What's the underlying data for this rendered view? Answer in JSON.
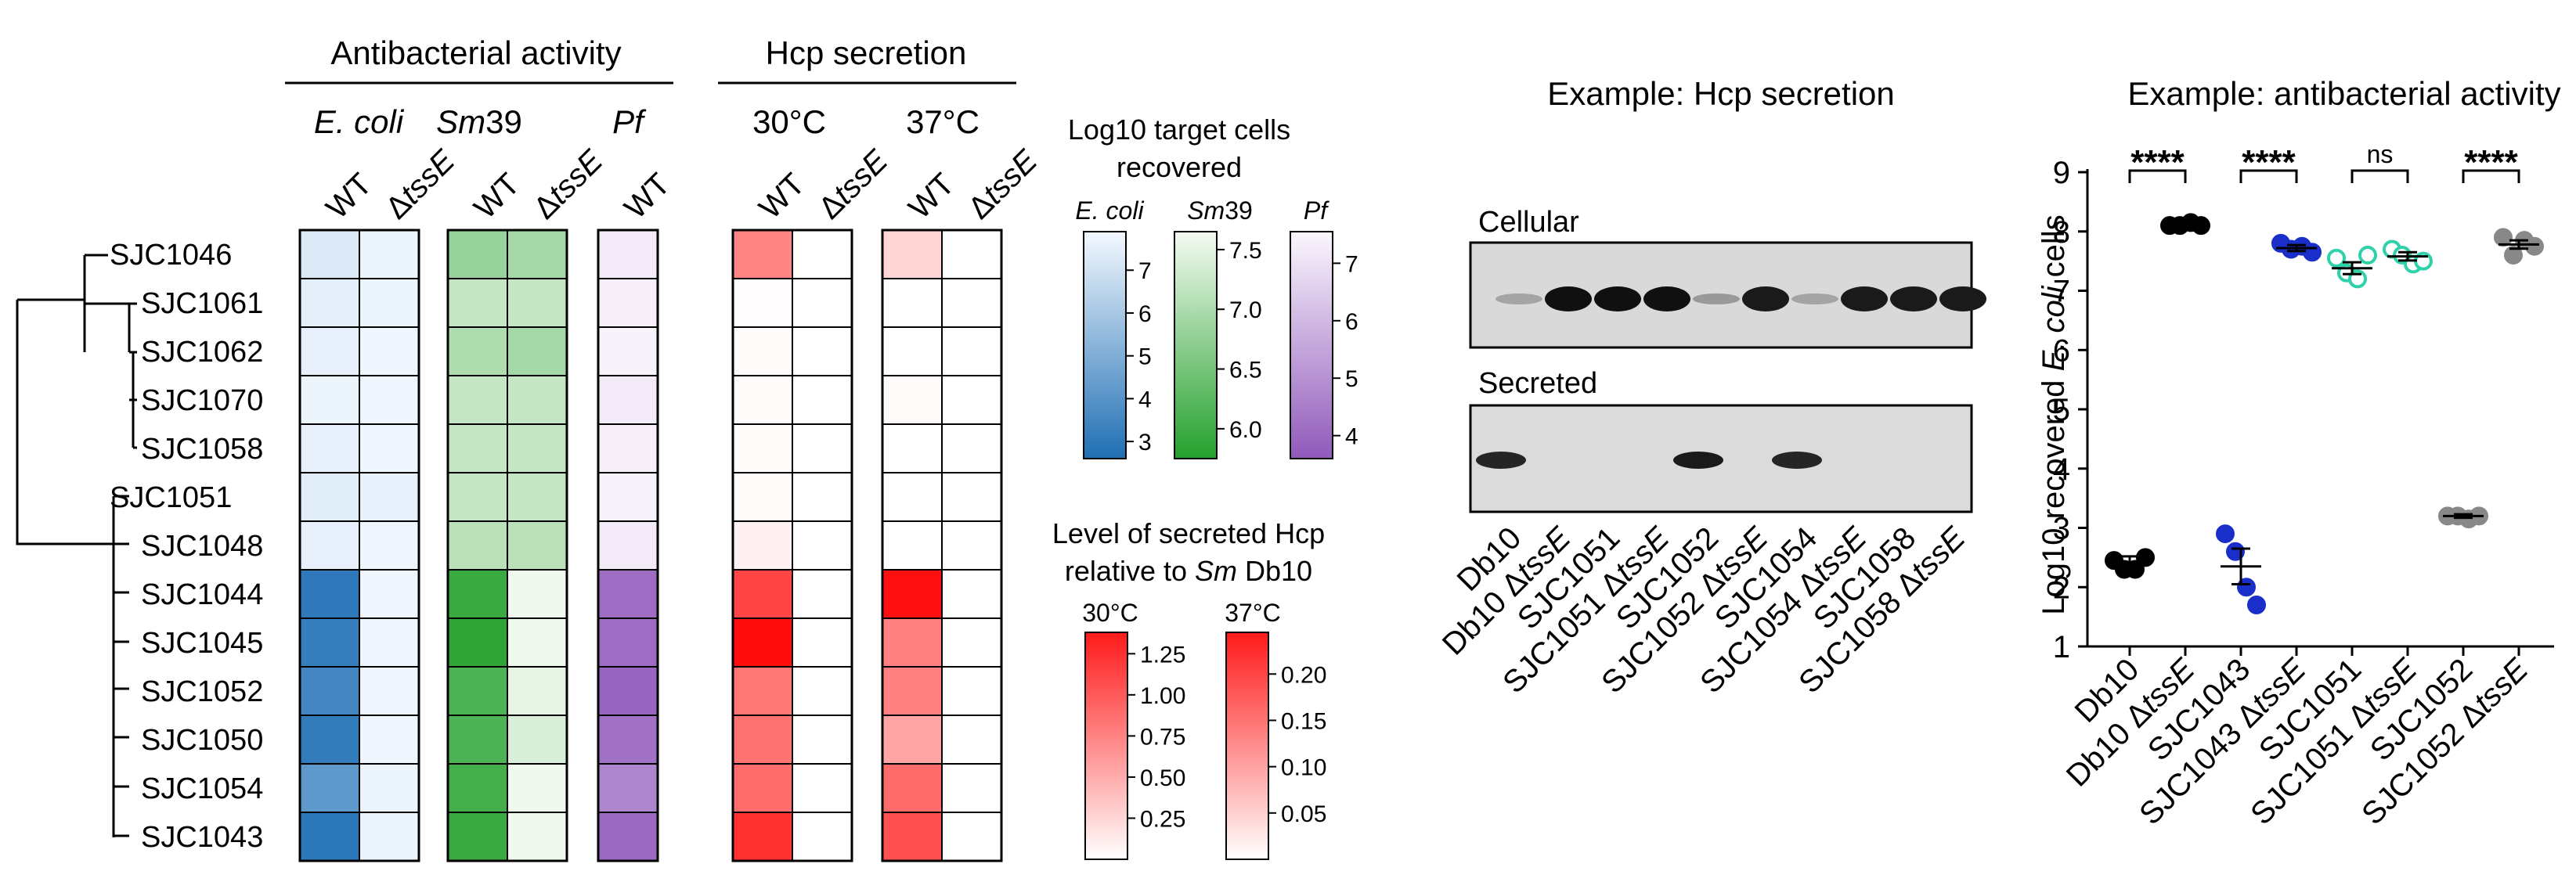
{
  "heatmap": {
    "header": {
      "antibacterial_activity": "Antibacterial activity",
      "hcp_secretion": "Hcp secretion",
      "ecoli": "E. coli",
      "sm39_italic": "Sm",
      "sm39_num": "39",
      "pf": "Pf",
      "t30": "30°C",
      "t37": "37°C"
    },
    "columns": [
      {
        "id": "ecoli-wt",
        "group": "ecoli",
        "label": "WT",
        "italic_suffix": ""
      },
      {
        "id": "ecoli-dtsse",
        "group": "ecoli",
        "label": "Δ",
        "italic_suffix": "tssE"
      },
      {
        "id": "sm39-wt",
        "group": "sm39",
        "label": "WT",
        "italic_suffix": ""
      },
      {
        "id": "sm39-dtsse",
        "group": "sm39",
        "label": "Δ",
        "italic_suffix": "tssE"
      },
      {
        "id": "pf-wt",
        "group": "pf",
        "label": "WT",
        "italic_suffix": ""
      },
      {
        "id": "h30-wt",
        "group": "hcp30",
        "label": "WT",
        "italic_suffix": ""
      },
      {
        "id": "h30-dtsse",
        "group": "hcp30",
        "label": "Δ",
        "italic_suffix": "tssE"
      },
      {
        "id": "h37-wt",
        "group": "hcp37",
        "label": "WT",
        "italic_suffix": ""
      },
      {
        "id": "h37-dtsse",
        "group": "hcp37",
        "label": "Δ",
        "italic_suffix": "tssE"
      }
    ],
    "rows": [
      "SJC1046",
      "SJC1061",
      "SJC1062",
      "SJC1070",
      "SJC1058",
      "SJC1051",
      "SJC1048",
      "SJC1044",
      "SJC1045",
      "SJC1052",
      "SJC1050",
      "SJC1054",
      "SJC1043"
    ],
    "values": {
      "ecoli-wt": [
        7.3,
        7.5,
        7.6,
        7.7,
        7.6,
        7.4,
        7.6,
        3.0,
        3.2,
        3.5,
        3.1,
        4.2,
        2.9
      ],
      "ecoli-dtsse": [
        7.7,
        7.7,
        7.8,
        7.8,
        7.8,
        7.6,
        7.8,
        7.8,
        7.8,
        7.8,
        7.8,
        7.7,
        7.7
      ],
      "sm39-wt": [
        6.8,
        7.2,
        7.0,
        7.2,
        7.2,
        7.2,
        7.1,
        5.9,
        5.8,
        6.1,
        6.1,
        6.0,
        5.9
      ],
      "sm39-dtsse": [
        6.9,
        7.2,
        6.9,
        7.2,
        7.2,
        7.2,
        7.1,
        7.6,
        7.6,
        7.5,
        7.4,
        7.6,
        7.6
      ],
      "pf-wt": [
        7.3,
        7.4,
        7.5,
        7.3,
        7.4,
        7.5,
        7.3,
        4.2,
        4.2,
        4.0,
        4.3,
        4.8,
        4.1
      ],
      "h30-wt": [
        0.62,
        0.01,
        0.02,
        0.02,
        0.02,
        0.02,
        0.07,
        0.95,
        1.24,
        0.7,
        0.72,
        0.75,
        1.05
      ],
      "h30-dtsse": [
        0.0,
        0.0,
        0.0,
        0.0,
        0.0,
        0.0,
        0.0,
        0.0,
        0.0,
        0.0,
        0.0,
        0.0,
        0.0
      ],
      "h37-wt": [
        0.04,
        0.0,
        0.0,
        0.005,
        0.0,
        0.0,
        0.0,
        0.225,
        0.12,
        0.12,
        0.085,
        0.14,
        0.165
      ],
      "h37-dtsse": [
        0.0,
        0.0,
        0.0,
        0.0,
        0.0,
        0.0,
        0.0,
        0.0,
        0.0,
        0.0,
        0.0,
        0.0,
        0.0
      ]
    },
    "scales": {
      "ecoli": {
        "min": 2.6,
        "max": 7.9,
        "low": "#1f6fb4",
        "high": "#f4f9ff"
      },
      "sm39": {
        "min": 5.7,
        "max": 7.65,
        "low": "#23a02c",
        "high": "#f5fbf2"
      },
      "pf": {
        "min": 3.7,
        "max": 7.6,
        "low": "#9059bb",
        "high": "#fbf7fd"
      },
      "hcp30": {
        "min": 0.0,
        "max": 1.3,
        "low": "#ffffff",
        "high": "#ff0000"
      },
      "hcp37": {
        "min": 0.0,
        "max": 0.24,
        "low": "#ffffff",
        "high": "#ff0000"
      }
    }
  },
  "legend_log10": {
    "title_line1": "Log10 target cells",
    "title_line2": "recovered",
    "ecoli_label": "E. coli",
    "sm_label_italic": "Sm",
    "sm_label_num": "39",
    "pf_label": "Pf",
    "ecoli_ticks": [
      "7",
      "6",
      "5",
      "4",
      "3"
    ],
    "sm_ticks": [
      "7.5",
      "7.0",
      "6.5",
      "6.0"
    ],
    "pf_ticks": [
      "7",
      "6",
      "5",
      "4"
    ]
  },
  "legend_hcp": {
    "title_line1": "Level of secreted Hcp",
    "title_line2_prefix": "relative to ",
    "title_line2_italic": "Sm",
    "title_line2_suffix": " Db10",
    "label30": "30°C",
    "label37": "37°C",
    "ticks30": [
      "1.25",
      "1.00",
      "0.75",
      "0.50",
      "0.25"
    ],
    "ticks37": [
      "0.20",
      "0.15",
      "0.10",
      "0.05"
    ]
  },
  "blot": {
    "title": "Example: Hcp secretion",
    "cellular_label": "Cellular",
    "secreted_label": "Secreted",
    "lanes": [
      {
        "name": "Db10",
        "italic": ""
      },
      {
        "name": "Db10 Δ",
        "italic": "tssE"
      },
      {
        "name": "SJC1051",
        "italic": ""
      },
      {
        "name": "SJC1051 Δ",
        "italic": "tssE"
      },
      {
        "name": "SJC1052",
        "italic": ""
      },
      {
        "name": "SJC1052 Δ",
        "italic": "tssE"
      },
      {
        "name": "SJC1054",
        "italic": ""
      },
      {
        "name": "SJC1054 Δ",
        "italic": "tssE"
      },
      {
        "name": "SJC1058",
        "italic": ""
      },
      {
        "name": "SJC1058 Δ",
        "italic": "tssE"
      }
    ],
    "cellular_intensity": [
      0.25,
      0.95,
      0.95,
      0.95,
      0.3,
      0.9,
      0.25,
      0.9,
      0.9,
      0.9
    ],
    "secreted_intensity": [
      0.85,
      0,
      0,
      0,
      0.9,
      0,
      0.85,
      0,
      0,
      0
    ]
  },
  "chart_data": {
    "type": "scatter",
    "title": "Example: antibacterial activity",
    "ylabel_prefix": "Log10 recovered ",
    "ylabel_italic": "E. coli",
    "ylabel_suffix": " cells",
    "ylim": [
      1,
      9
    ],
    "yticks": [
      "1",
      "2",
      "3",
      "4",
      "5",
      "6",
      "7",
      "8",
      "9"
    ],
    "categories": [
      {
        "name": "Db10",
        "italic": ""
      },
      {
        "name": "Db10 Δ",
        "italic": "tssE"
      },
      {
        "name": "SJC1043",
        "italic": ""
      },
      {
        "name": "SJC1043 Δ",
        "italic": "tssE"
      },
      {
        "name": "SJC1051",
        "italic": ""
      },
      {
        "name": "SJC1051 Δ",
        "italic": "tssE"
      },
      {
        "name": "SJC1052",
        "italic": ""
      },
      {
        "name": "SJC1052 Δ",
        "italic": "tssE"
      }
    ],
    "groups": [
      {
        "color": "#000000",
        "filled": true,
        "points": [
          2.45,
          2.3,
          2.3,
          2.5
        ],
        "mean": 2.4,
        "sem": 0.12
      },
      {
        "color": "#000000",
        "filled": true,
        "points": [
          8.1,
          8.1,
          8.15,
          8.1
        ],
        "mean": 8.1,
        "sem": 0.04
      },
      {
        "color": "#1a2fc9",
        "filled": true,
        "points": [
          2.9,
          2.6,
          2.0,
          1.7
        ],
        "mean": 2.35,
        "sem": 0.3
      },
      {
        "color": "#1a2fc9",
        "filled": true,
        "points": [
          7.8,
          7.7,
          7.75,
          7.65
        ],
        "mean": 7.72,
        "sem": 0.05
      },
      {
        "color": "#2fd2a8",
        "filled": false,
        "points": [
          7.55,
          7.3,
          7.2,
          7.6
        ],
        "mean": 7.38,
        "sem": 0.1
      },
      {
        "color": "#2fd2a8",
        "filled": false,
        "points": [
          7.7,
          7.6,
          7.45,
          7.5
        ],
        "mean": 7.58,
        "sem": 0.07
      },
      {
        "color": "#888888",
        "filled": true,
        "points": [
          3.2,
          3.2,
          3.15,
          3.2
        ],
        "mean": 3.2,
        "sem": 0.03
      },
      {
        "color": "#888888",
        "filled": true,
        "points": [
          7.9,
          7.6,
          7.85,
          7.75
        ],
        "mean": 7.78,
        "sem": 0.07
      }
    ],
    "significance": [
      {
        "from": 0,
        "to": 1,
        "label": "****"
      },
      {
        "from": 2,
        "to": 3,
        "label": "****"
      },
      {
        "from": 4,
        "to": 5,
        "label": "ns"
      },
      {
        "from": 6,
        "to": 7,
        "label": "****"
      }
    ]
  }
}
